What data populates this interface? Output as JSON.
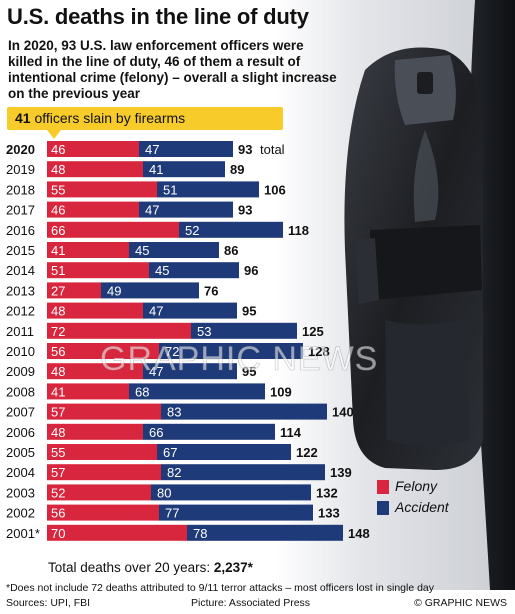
{
  "title": "U.S. deaths in the line of duty",
  "subtitle": "In 2020, 93 U.S. law enforcement officers were killed in the line of duty, 46 of them a result of intentional crime (felony) – overall a slight increase on the previous year",
  "callout": {
    "number": "41",
    "text": "officers slain by firearms"
  },
  "total_line": {
    "label": "Total deaths over 20 years:",
    "value": "2,237*"
  },
  "watermark": "GRAPHIC NEWS",
  "footnote": "*Does not include 72 deaths attributed to 9/11 terror attacks – most officers lost in single day",
  "sources": "Sources: UPI, FBI",
  "picture_credit": "Picture: Associated Press",
  "copyright": "© GRAPHIC NEWS",
  "colors": {
    "felony": "#d7263d",
    "accident": "#1f3a78",
    "callout": "#f7cc2a"
  },
  "chart_data": {
    "type": "bar",
    "stacked": true,
    "orientation": "horizontal",
    "categories": [
      "2020",
      "2019",
      "2018",
      "2017",
      "2016",
      "2015",
      "2014",
      "2013",
      "2012",
      "2011",
      "2010",
      "2009",
      "2008",
      "2007",
      "2006",
      "2005",
      "2004",
      "2003",
      "2002",
      "2001*"
    ],
    "series": [
      {
        "name": "Felony",
        "values": [
          46,
          48,
          55,
          46,
          66,
          41,
          51,
          27,
          48,
          72,
          56,
          48,
          41,
          57,
          48,
          55,
          57,
          52,
          56,
          70
        ]
      },
      {
        "name": "Accident",
        "values": [
          47,
          41,
          51,
          47,
          52,
          45,
          45,
          49,
          47,
          53,
          72,
          47,
          68,
          83,
          66,
          67,
          82,
          80,
          77,
          78
        ]
      }
    ],
    "totals": [
      93,
      89,
      106,
      93,
      118,
      86,
      96,
      76,
      95,
      125,
      128,
      95,
      109,
      140,
      114,
      122,
      139,
      132,
      133,
      148
    ],
    "first_total_suffix": "total",
    "legend_position": "bottom-right",
    "grid": false
  }
}
